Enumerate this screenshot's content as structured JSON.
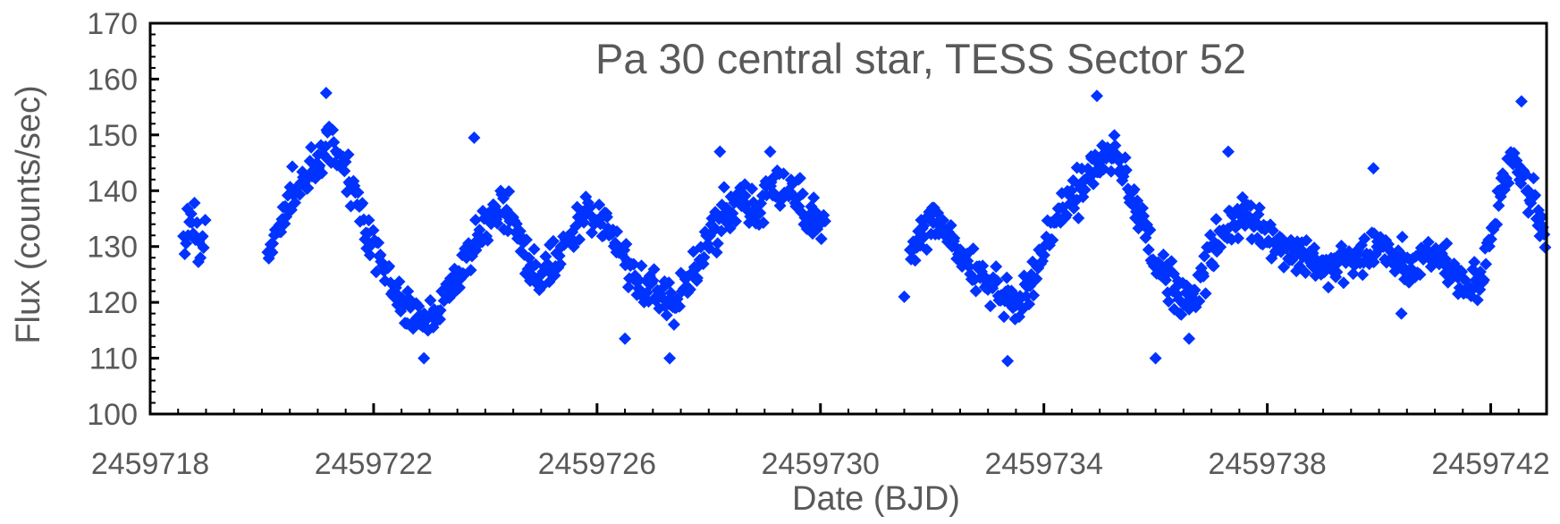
{
  "chart_data": {
    "type": "scatter",
    "title": "Pa 30 central star, TESS Sector 52",
    "xlabel": "Date (BJD)",
    "ylabel": "Flux (counts/sec)",
    "xlim": [
      2459718,
      2459743
    ],
    "ylim": [
      100,
      170
    ],
    "x_ticks": [
      2459718,
      2459722,
      2459726,
      2459730,
      2459734,
      2459738,
      2459742
    ],
    "x_tick_labels": [
      "2459718",
      "2459722",
      "2459726",
      "2459730",
      "2459734",
      "2459738",
      "2459742"
    ],
    "y_ticks": [
      100,
      110,
      120,
      130,
      140,
      150,
      160,
      170
    ],
    "y_tick_labels": [
      "100",
      "110",
      "120",
      "130",
      "140",
      "150",
      "160",
      "170"
    ],
    "grid": false,
    "legend": "none",
    "marker": "diamond",
    "marker_color": "#0033ff",
    "axis_color": "#000000",
    "series": [
      {
        "color": "#0033ff",
        "anchors": [
          [
            2459718.6,
            131
          ],
          [
            2459718.75,
            134
          ],
          [
            2459718.9,
            130
          ],
          [
            2459719.0,
            132
          ],
          [
            2459720.1,
            129
          ],
          [
            2459720.3,
            133
          ],
          [
            2459720.6,
            140
          ],
          [
            2459720.9,
            144
          ],
          [
            2459721.2,
            148
          ],
          [
            2459721.4,
            146
          ],
          [
            2459721.6,
            142
          ],
          [
            2459721.8,
            136
          ],
          [
            2459722.0,
            130
          ],
          [
            2459722.3,
            124
          ],
          [
            2459722.6,
            118
          ],
          [
            2459722.9,
            116
          ],
          [
            2459723.2,
            120
          ],
          [
            2459723.5,
            124
          ],
          [
            2459723.8,
            130
          ],
          [
            2459724.0,
            135
          ],
          [
            2459724.3,
            138
          ],
          [
            2459724.6,
            133
          ],
          [
            2459724.8,
            126
          ],
          [
            2459725.0,
            124
          ],
          [
            2459725.3,
            128
          ],
          [
            2459725.6,
            134
          ],
          [
            2459725.9,
            137
          ],
          [
            2459726.2,
            133
          ],
          [
            2459726.5,
            128
          ],
          [
            2459726.8,
            122
          ],
          [
            2459727.1,
            121
          ],
          [
            2459727.4,
            119
          ],
          [
            2459727.7,
            125
          ],
          [
            2459728.0,
            131
          ],
          [
            2459728.3,
            136
          ],
          [
            2459728.6,
            138
          ],
          [
            2459728.9,
            136
          ],
          [
            2459729.2,
            141
          ],
          [
            2459729.5,
            139
          ],
          [
            2459729.8,
            135
          ],
          [
            2459730.1,
            133
          ],
          [
            2459731.6,
            128
          ],
          [
            2459731.8,
            132
          ],
          [
            2459732.0,
            134
          ],
          [
            2459732.3,
            132
          ],
          [
            2459732.6,
            128
          ],
          [
            2459732.9,
            124
          ],
          [
            2459733.2,
            121
          ],
          [
            2459733.5,
            120
          ],
          [
            2459733.8,
            124
          ],
          [
            2459734.0,
            130
          ],
          [
            2459734.3,
            136
          ],
          [
            2459734.6,
            140
          ],
          [
            2459734.9,
            144
          ],
          [
            2459735.1,
            147
          ],
          [
            2459735.3,
            145
          ],
          [
            2459735.6,
            140
          ],
          [
            2459735.9,
            130
          ],
          [
            2459736.2,
            124
          ],
          [
            2459736.5,
            121
          ],
          [
            2459736.8,
            123
          ],
          [
            2459737.0,
            130
          ],
          [
            2459737.3,
            134
          ],
          [
            2459737.6,
            136
          ],
          [
            2459737.9,
            133
          ],
          [
            2459738.2,
            130
          ],
          [
            2459738.5,
            129
          ],
          [
            2459738.8,
            128
          ],
          [
            2459739.1,
            126
          ],
          [
            2459739.4,
            127
          ],
          [
            2459739.7,
            128
          ],
          [
            2459740.0,
            130
          ],
          [
            2459740.3,
            128
          ],
          [
            2459740.6,
            126
          ],
          [
            2459740.9,
            128
          ],
          [
            2459741.2,
            127
          ],
          [
            2459741.5,
            124
          ],
          [
            2459741.8,
            123
          ],
          [
            2459742.0,
            132
          ],
          [
            2459742.2,
            141
          ],
          [
            2459742.4,
            146
          ],
          [
            2459742.6,
            143
          ],
          [
            2459742.8,
            137
          ],
          [
            2459743.0,
            130
          ]
        ],
        "outliers": [
          [
            2459721.15,
            157.5
          ],
          [
            2459723.8,
            149.5
          ],
          [
            2459722.9,
            110
          ],
          [
            2459727.3,
            110
          ],
          [
            2459733.35,
            109.5
          ],
          [
            2459736.0,
            110
          ],
          [
            2459734.95,
            157
          ],
          [
            2459742.55,
            156
          ],
          [
            2459731.5,
            121
          ],
          [
            2459728.2,
            147
          ],
          [
            2459729.1,
            147
          ],
          [
            2459737.3,
            147
          ],
          [
            2459739.9,
            144
          ],
          [
            2459740.4,
            118
          ],
          [
            2459736.6,
            113.5
          ],
          [
            2459726.5,
            113.5
          ]
        ]
      }
    ]
  }
}
